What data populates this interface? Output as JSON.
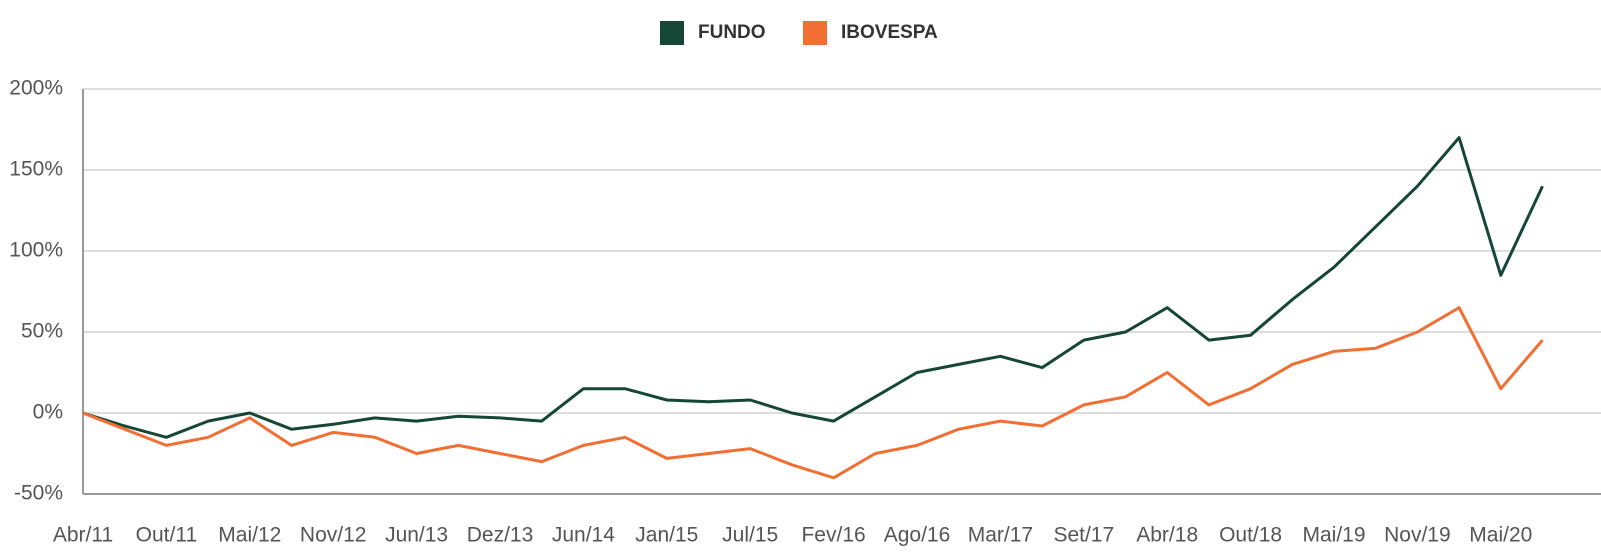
{
  "chart_data": {
    "type": "line",
    "categories": [
      "Abr/11",
      null,
      "Out/11",
      null,
      "Mai/12",
      null,
      "Nov/12",
      null,
      "Jun/13",
      null,
      "Dez/13",
      null,
      "Jun/14",
      null,
      "Jan/15",
      null,
      "Jul/15",
      null,
      "Fev/16",
      null,
      "Ago/16",
      null,
      "Mar/17",
      null,
      "Set/17",
      null,
      "Abr/18",
      null,
      "Out/18",
      null,
      "Mai/19",
      null,
      "Nov/19",
      null,
      "Mai/20",
      null
    ],
    "series": [
      {
        "name": "FUNDO",
        "color": "#154734",
        "values": [
          0,
          -8,
          -15,
          -5,
          0,
          -10,
          -7,
          -3,
          -5,
          -2,
          -3,
          -5,
          15,
          15,
          8,
          7,
          8,
          0,
          -5,
          10,
          25,
          30,
          35,
          28,
          45,
          50,
          65,
          45,
          48,
          70,
          90,
          115,
          140,
          170,
          85,
          140
        ]
      },
      {
        "name": "IBOVESPA",
        "color": "#f26f33",
        "values": [
          0,
          -10,
          -20,
          -15,
          -3,
          -20,
          -12,
          -15,
          -25,
          -20,
          -25,
          -30,
          -20,
          -15,
          -28,
          -25,
          -22,
          -32,
          -40,
          -25,
          -20,
          -10,
          -5,
          -8,
          5,
          10,
          25,
          5,
          15,
          30,
          38,
          40,
          50,
          65,
          15,
          45
        ]
      }
    ],
    "ylim": [
      -50,
      200
    ],
    "yticks": [
      {
        "value": -50,
        "label": "-50%"
      },
      {
        "value": 0,
        "label": "0%"
      },
      {
        "value": 50,
        "label": "50%"
      },
      {
        "value": 100,
        "label": "100%"
      },
      {
        "value": 150,
        "label": "150%"
      },
      {
        "value": 200,
        "label": "200%"
      }
    ],
    "grid": true,
    "legend": "top"
  }
}
